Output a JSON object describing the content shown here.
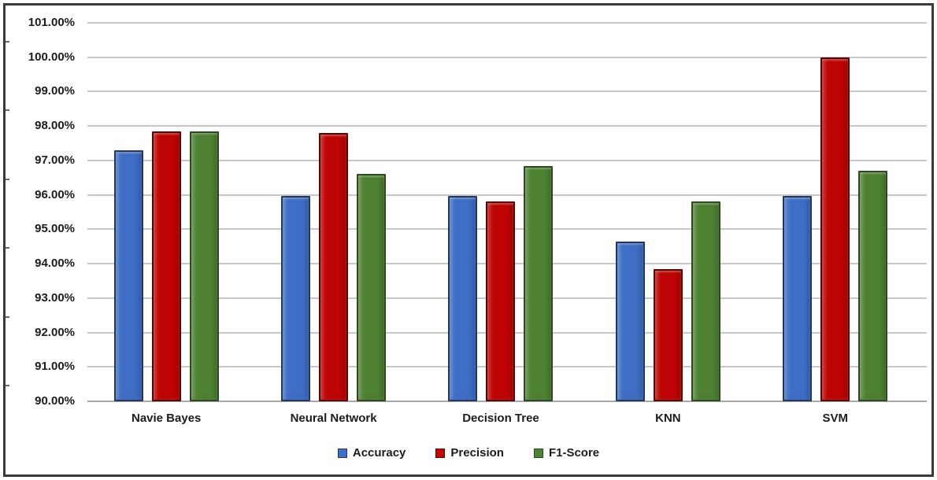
{
  "chart_data": {
    "type": "bar",
    "title": "",
    "categories": [
      "Navie Bayes",
      "Neural Network",
      "Decision Tree",
      "KNN",
      "SVM"
    ],
    "series": [
      {
        "name": "Accuracy",
        "color": "#3E6EC5",
        "border_color": "#1F3864",
        "values": [
          97.3,
          95.97,
          95.97,
          94.65,
          95.97
        ]
      },
      {
        "name": "Precision",
        "color": "#BE0404",
        "border_color": "#5F0000",
        "values": [
          97.85,
          97.8,
          95.8,
          93.85,
          100.0
        ]
      },
      {
        "name": "F1-Score",
        "color": "#4E8132",
        "border_color": "#2C4A1D",
        "values": [
          97.85,
          96.6,
          96.85,
          95.8,
          96.7
        ]
      }
    ],
    "ylim": [
      90,
      101
    ],
    "ytick_step": 1,
    "ytick_labels": [
      "101.00%",
      "100.00%",
      "99.00%",
      "98.00%",
      "97.00%",
      "96.00%",
      "95.00%",
      "94.00%",
      "93.00%",
      "92.00%",
      "91.00%",
      "90.00%"
    ],
    "grid": true,
    "legend_position": "bottom",
    "gridline_color": "#C8C8C8",
    "axis_line_color": "#A8A8A8",
    "text_color": "#1C1C1C",
    "frame_color": "#3A3A3A"
  }
}
